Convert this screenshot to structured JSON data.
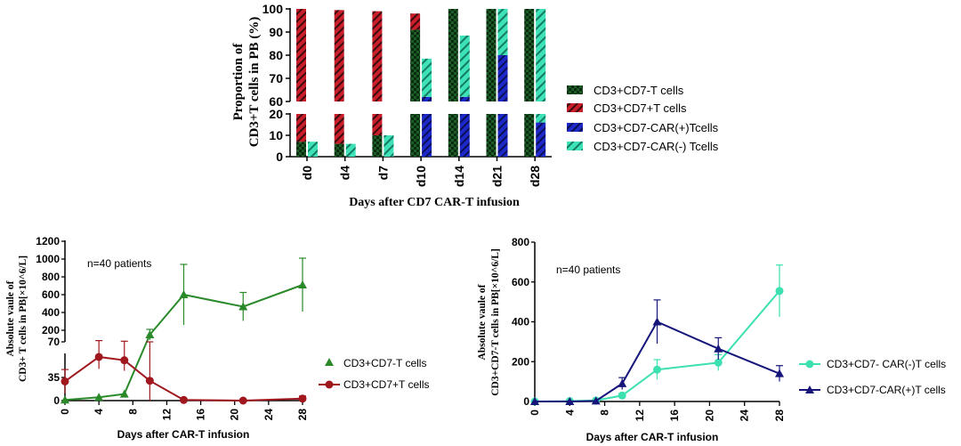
{
  "chart_data": [
    {
      "type": "bar",
      "title": "",
      "xlabel": "Days after CD7 CAR-T infusion",
      "ylabel_lines": [
        "Proportion of",
        "CD3+T cells in PB (%)"
      ],
      "categories": [
        "d0",
        "d4",
        "d7",
        "d10",
        "d14",
        "d21",
        "d28"
      ],
      "y_ticks_upper": [
        60,
        70,
        80,
        90,
        100
      ],
      "y_ticks_lower": [
        0,
        10,
        20
      ],
      "ylim_upper": [
        60,
        100
      ],
      "ylim_lower": [
        0,
        20
      ],
      "pairs": [
        {
          "cd7neg_total": 7,
          "cd7pos": 93,
          "car_pos": 0,
          "car_neg": 7
        },
        {
          "cd7neg_total": 6,
          "cd7pos": 93.5,
          "car_pos": 0,
          "car_neg": 6
        },
        {
          "cd7neg_total": 10,
          "cd7pos": 89,
          "car_pos": 0,
          "car_neg": 10
        },
        {
          "cd7neg_total": 91,
          "cd7pos": 7,
          "car_pos": 62,
          "car_neg": 16.5
        },
        {
          "cd7neg_total": 100,
          "cd7pos": 0,
          "car_pos": 62,
          "car_neg": 26.5
        },
        {
          "cd7neg_total": 100,
          "cd7pos": 0,
          "car_pos": 80,
          "car_neg": 20
        },
        {
          "cd7neg_total": 100,
          "cd7pos": 0,
          "car_pos": 16,
          "car_neg": 84
        }
      ],
      "legend": [
        {
          "label": "CD3+CD7-T cells",
          "pattern": "check",
          "color": "#1c5c26"
        },
        {
          "label": "CD3+CD7+T cells",
          "pattern": "hatch",
          "color": "#c81e2a"
        },
        {
          "label": "CD3+CD7-CAR(+)Tcells",
          "pattern": "hatch",
          "color": "#1c28c8"
        },
        {
          "label": "CD3+CD7-CAR(-) Tcells",
          "pattern": "hatch",
          "color": "#3ee2b8"
        }
      ]
    },
    {
      "type": "line",
      "annotation": "n=40 patients",
      "xlabel": "Days after CAR-T infusion",
      "ylabel_lines": [
        "Absolute vaule of",
        "CD3+ T cells in PB[×10^6/L]"
      ],
      "x_ticks": [
        0,
        4,
        8,
        12,
        16,
        20,
        24,
        28
      ],
      "y_ticks_upper": [
        200,
        400,
        600,
        800,
        1000,
        1200
      ],
      "y_ticks_lower": [
        0,
        35,
        70
      ],
      "ylim_upper": [
        70,
        1200
      ],
      "ylim_lower": [
        0,
        70
      ],
      "series": [
        {
          "name": "CD3+CD7-T cells",
          "color": "#2a8a2a",
          "marker": "triangle",
          "x": [
            0,
            4,
            7,
            10,
            14,
            21,
            28
          ],
          "y": [
            1,
            5,
            10,
            150,
            600,
            465,
            710
          ],
          "err": [
            0,
            0,
            0,
            60,
            340,
            160,
            300
          ]
        },
        {
          "name": "CD3+CD7+T cells",
          "color": "#a0181e",
          "marker": "circle",
          "x": [
            0,
            4,
            7,
            10,
            14,
            21,
            28
          ],
          "y": [
            29,
            66,
            61,
            30,
            1,
            0,
            3
          ],
          "err": [
            18,
            18,
            16,
            40,
            0,
            0,
            4
          ]
        }
      ]
    },
    {
      "type": "line",
      "annotation": "n=40 patients",
      "xlabel": "Days after CAR-T infusion",
      "ylabel_lines": [
        "Absolute vaule of",
        "CD3+CD7-T cells in PB[×10^6/L]"
      ],
      "x_ticks": [
        0,
        4,
        8,
        12,
        16,
        20,
        24,
        28
      ],
      "y_ticks": [
        0,
        200,
        400,
        600,
        800
      ],
      "ylim": [
        0,
        800
      ],
      "series": [
        {
          "name": "CD3+CD7- CAR(-)T cells",
          "color": "#3de0b0",
          "marker": "circle",
          "x": [
            0,
            4,
            7,
            10,
            14,
            21,
            28
          ],
          "y": [
            0,
            2,
            5,
            30,
            160,
            195,
            555
          ],
          "err": [
            0,
            0,
            0,
            10,
            50,
            40,
            130
          ]
        },
        {
          "name": "CD3+CD7-CAR(+)T cells",
          "color": "#16167a",
          "marker": "triangle",
          "x": [
            0,
            4,
            7,
            10,
            14,
            21,
            28
          ],
          "y": [
            0,
            0,
            3,
            90,
            400,
            265,
            140
          ],
          "err": [
            0,
            0,
            0,
            30,
            110,
            55,
            40
          ]
        }
      ]
    }
  ]
}
